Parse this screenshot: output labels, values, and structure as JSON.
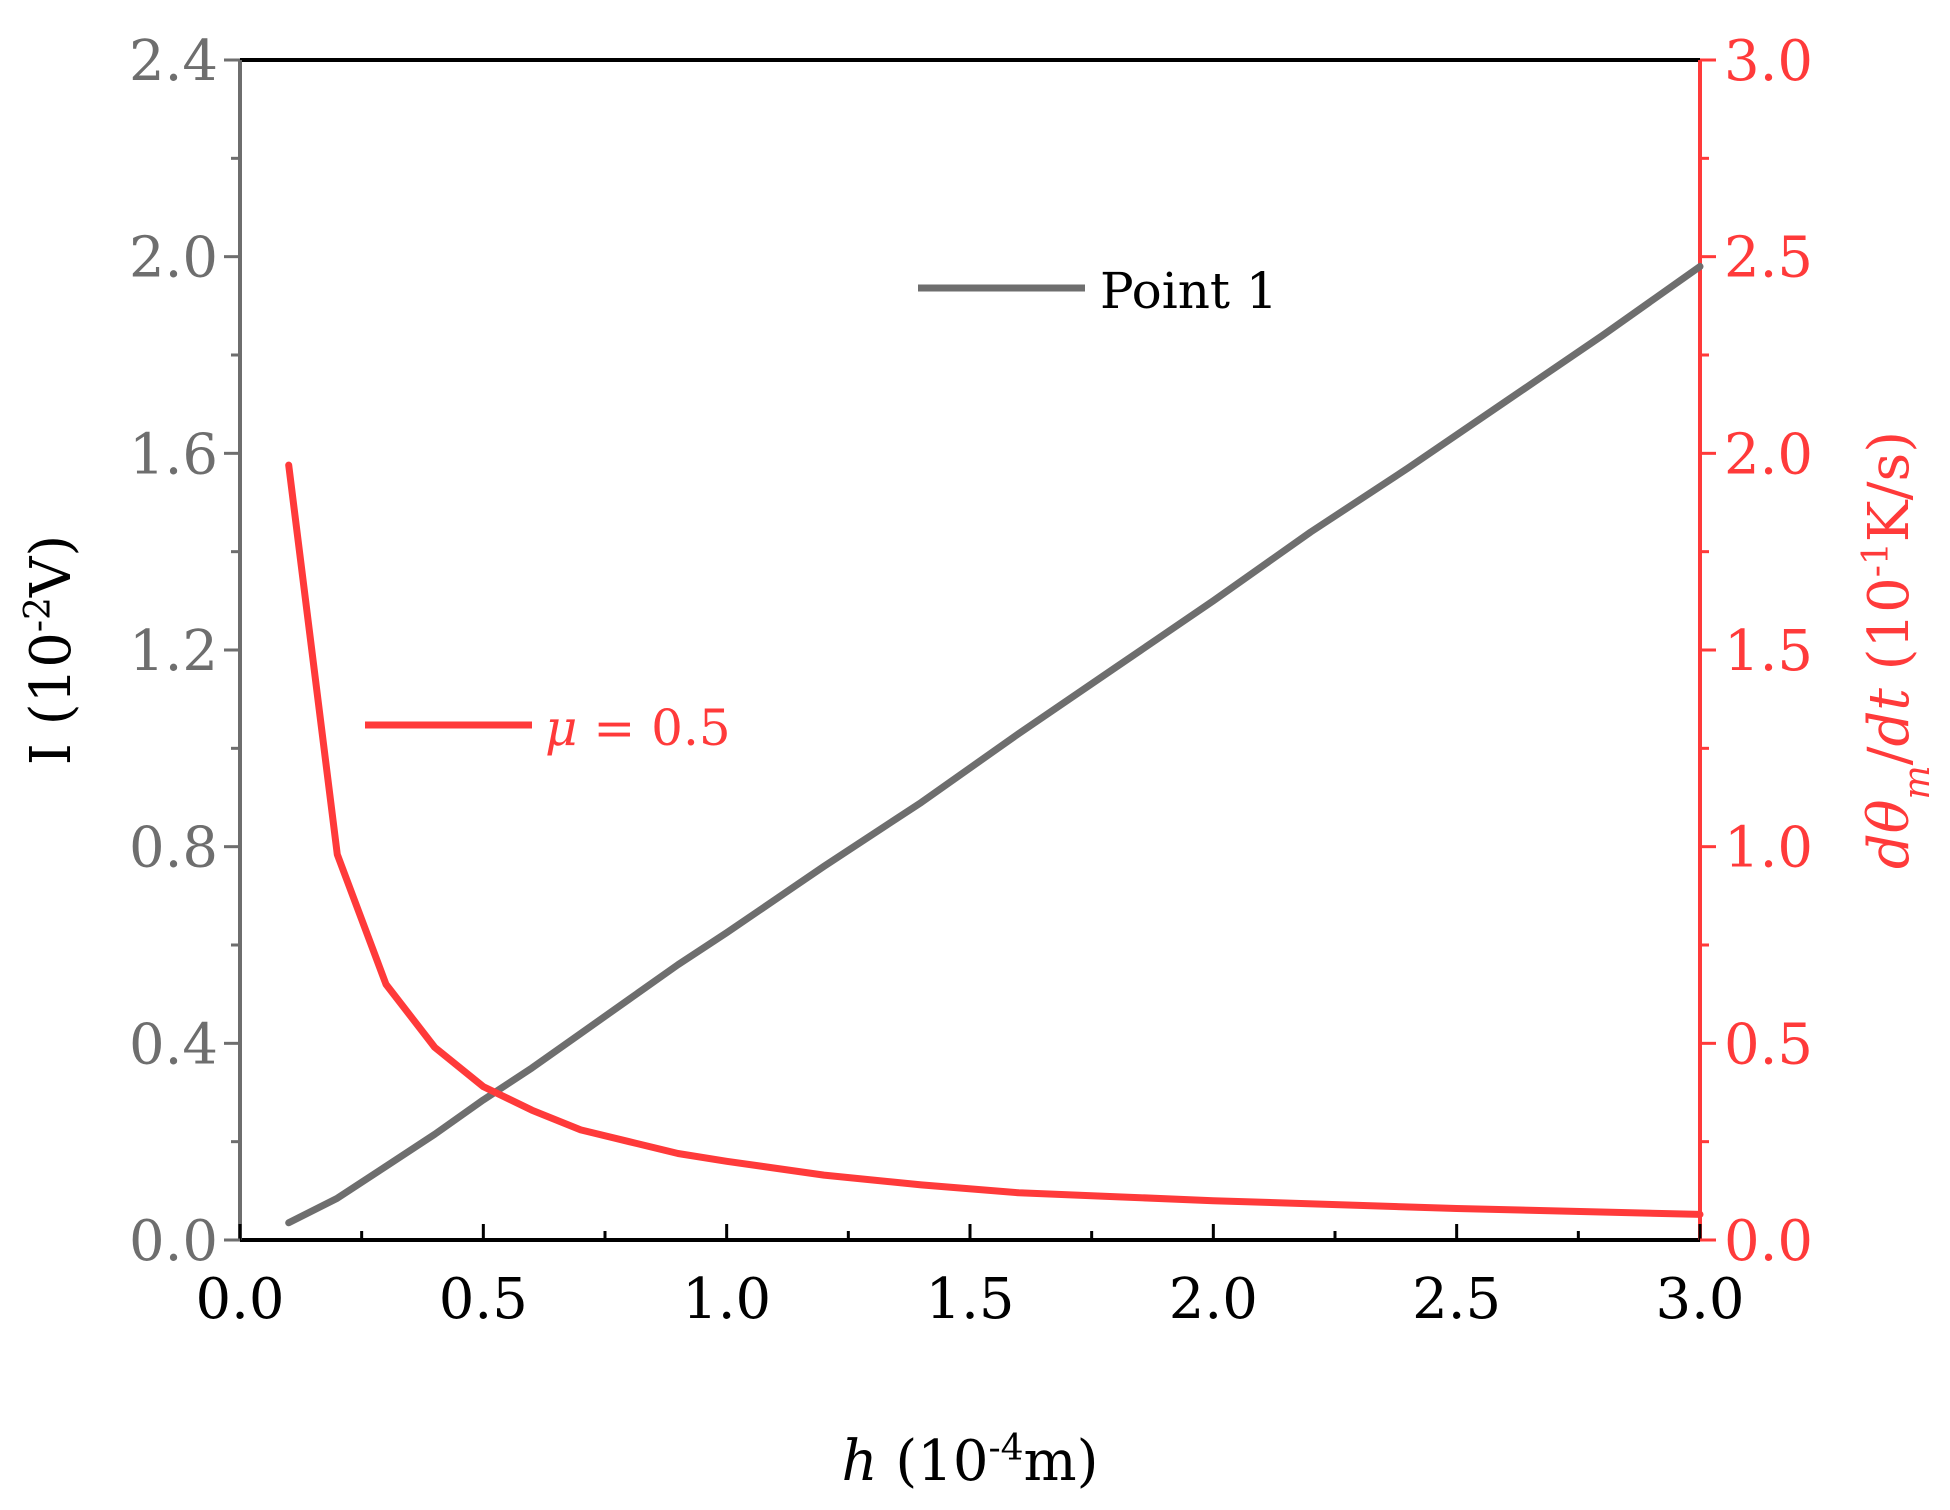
{
  "chart_data": {
    "type": "line",
    "title": "",
    "xlabel": {
      "var": "h",
      "text": " (10",
      "sup": "-4",
      "unit": "m)"
    },
    "ylabel_left": {
      "text": "I (10",
      "sup": "-2",
      "unit": "V)"
    },
    "ylabel_right": {
      "var1": "d",
      "var2": "θ",
      "sub": "m",
      "mid": "/",
      "var3": "dt",
      "text": " (10",
      "sup": "-1",
      "unit": "K/s)"
    },
    "xlim": [
      0.0,
      3.0
    ],
    "ylim_left": [
      0.0,
      2.4
    ],
    "ylim_right": [
      0.0,
      3.0
    ],
    "x_ticks": [
      "0.0",
      "0.5",
      "1.0",
      "1.5",
      "2.0",
      "2.5",
      "3.0"
    ],
    "y_left_ticks": [
      "0.0",
      "0.4",
      "0.8",
      "1.2",
      "1.6",
      "2.0",
      "2.4"
    ],
    "y_right_ticks": [
      "0.0",
      "0.5",
      "1.0",
      "1.5",
      "2.0",
      "2.5",
      "3.0"
    ],
    "colors": {
      "series1": "#6e6e6e",
      "series2": "#ff3a3a",
      "axis": "#000000"
    },
    "series": [
      {
        "name": "Point 1",
        "axis": "left",
        "x": [
          0.1,
          0.2,
          0.3,
          0.4,
          0.5,
          0.6,
          0.7,
          0.8,
          0.9,
          1.0,
          1.2,
          1.4,
          1.6,
          1.8,
          2.0,
          2.2,
          2.4,
          2.6,
          2.8,
          3.0
        ],
        "y": [
          0.035,
          0.085,
          0.15,
          0.215,
          0.285,
          0.35,
          0.42,
          0.49,
          0.56,
          0.625,
          0.76,
          0.89,
          1.03,
          1.165,
          1.3,
          1.44,
          1.57,
          1.705,
          1.84,
          1.98
        ]
      },
      {
        "name": "μ = 0.5",
        "legend_var": "μ",
        "legend_rest": " = 0.5",
        "axis": "right",
        "x": [
          0.1,
          0.2,
          0.3,
          0.4,
          0.5,
          0.6,
          0.7,
          0.8,
          0.9,
          1.0,
          1.2,
          1.4,
          1.6,
          1.8,
          2.0,
          2.5,
          3.0
        ],
        "y": [
          1.97,
          0.98,
          0.65,
          0.49,
          0.39,
          0.33,
          0.28,
          0.25,
          0.22,
          0.2,
          0.165,
          0.14,
          0.12,
          0.11,
          0.1,
          0.08,
          0.065
        ]
      }
    ]
  }
}
